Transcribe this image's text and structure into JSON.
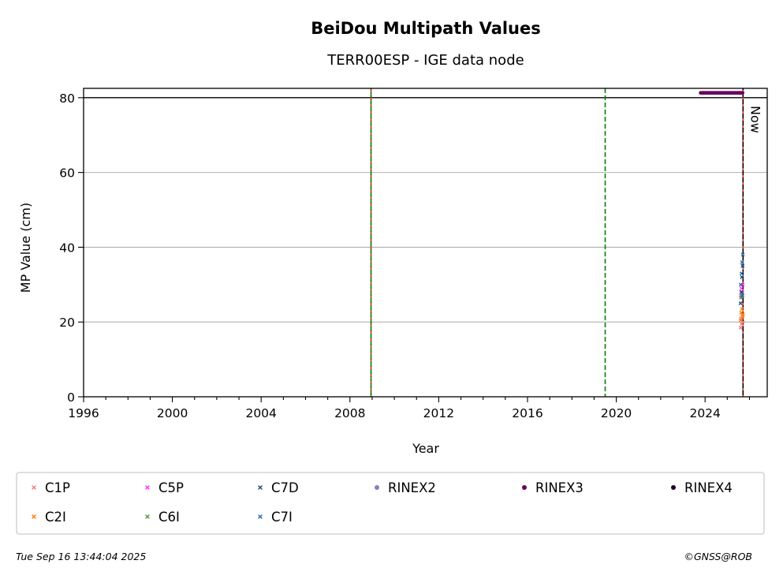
{
  "chart_data": {
    "type": "scatter",
    "title": "BeiDou Multipath Values",
    "subtitle": "TERR00ESP - IGE data node",
    "xlabel": "Year",
    "ylabel": "MP Value (cm)",
    "xlim": [
      1996,
      2026.8
    ],
    "ylim": [
      0,
      82.5
    ],
    "x_ticks": [
      1996,
      2000,
      2004,
      2008,
      2012,
      2016,
      2020,
      2024
    ],
    "y_ticks": [
      0,
      20,
      40,
      60,
      80
    ],
    "grid": "horizontal",
    "threshold_line": 80,
    "event_lines": [
      {
        "x": 2008.95,
        "colors": [
          "#d62728",
          "#008000"
        ]
      },
      {
        "x": 2019.5,
        "colors": [
          "#008000"
        ]
      },
      {
        "x": 2025.71,
        "colors": [
          "#d62728",
          "#000000"
        ]
      }
    ],
    "now_label": "Now",
    "now_x": 2025.71,
    "legend_position": "bottom",
    "legend": [
      {
        "label": "C1P",
        "marker": "x",
        "color": "#f08080"
      },
      {
        "label": "C5P",
        "marker": "x",
        "color": "#ff33ff"
      },
      {
        "label": "C7D",
        "marker": "x",
        "color": "#1f4e79"
      },
      {
        "label": "RINEX2",
        "marker": "dot",
        "color": "#8080c0"
      },
      {
        "label": "RINEX3",
        "marker": "dot",
        "color": "#6a0060"
      },
      {
        "label": "RINEX4",
        "marker": "dot",
        "color": "#1a0020"
      },
      {
        "label": "C2I",
        "marker": "x",
        "color": "#ff7f0e"
      },
      {
        "label": "C6I",
        "marker": "x",
        "color": "#5a9a3a"
      },
      {
        "label": "C7I",
        "marker": "x",
        "color": "#2a6faa"
      }
    ],
    "series": [
      {
        "name": "C1P",
        "color": "#f08080",
        "x": [
          2025.6,
          2025.62,
          2025.65,
          2025.68,
          2025.7
        ],
        "y": [
          18.5,
          21,
          19.5,
          22,
          20
        ]
      },
      {
        "name": "C2I",
        "color": "#ff7f0e",
        "x": [
          2025.6,
          2025.63,
          2025.66,
          2025.69,
          2025.71
        ],
        "y": [
          20.5,
          22.5,
          23.5,
          21.5,
          22
        ]
      },
      {
        "name": "C5P",
        "color": "#ff33ff",
        "x": [
          2025.61,
          2025.64,
          2025.67,
          2025.7
        ],
        "y": [
          27,
          29,
          28,
          30
        ]
      },
      {
        "name": "C6I",
        "color": "#5a9a3a",
        "x": [
          2025.62,
          2025.66
        ],
        "y": [
          26.5,
          27.5
        ]
      },
      {
        "name": "C7D",
        "color": "#1f4e79",
        "x": [
          2025.6,
          2025.63,
          2025.66,
          2025.69
        ],
        "y": [
          25,
          28,
          32,
          35
        ]
      },
      {
        "name": "C7I",
        "color": "#2a6faa",
        "x": [
          2025.61,
          2025.64,
          2025.67,
          2025.7,
          2025.69
        ],
        "y": [
          30,
          33,
          36,
          38,
          27
        ]
      },
      {
        "name": "RINEX3",
        "color": "#6a0060",
        "x_range": [
          2023.8,
          2025.71
        ],
        "y": 81.3
      }
    ]
  },
  "footer": {
    "timestamp": "Tue Sep 16 13:44:04 2025",
    "credit": "©GNSS@ROB"
  }
}
